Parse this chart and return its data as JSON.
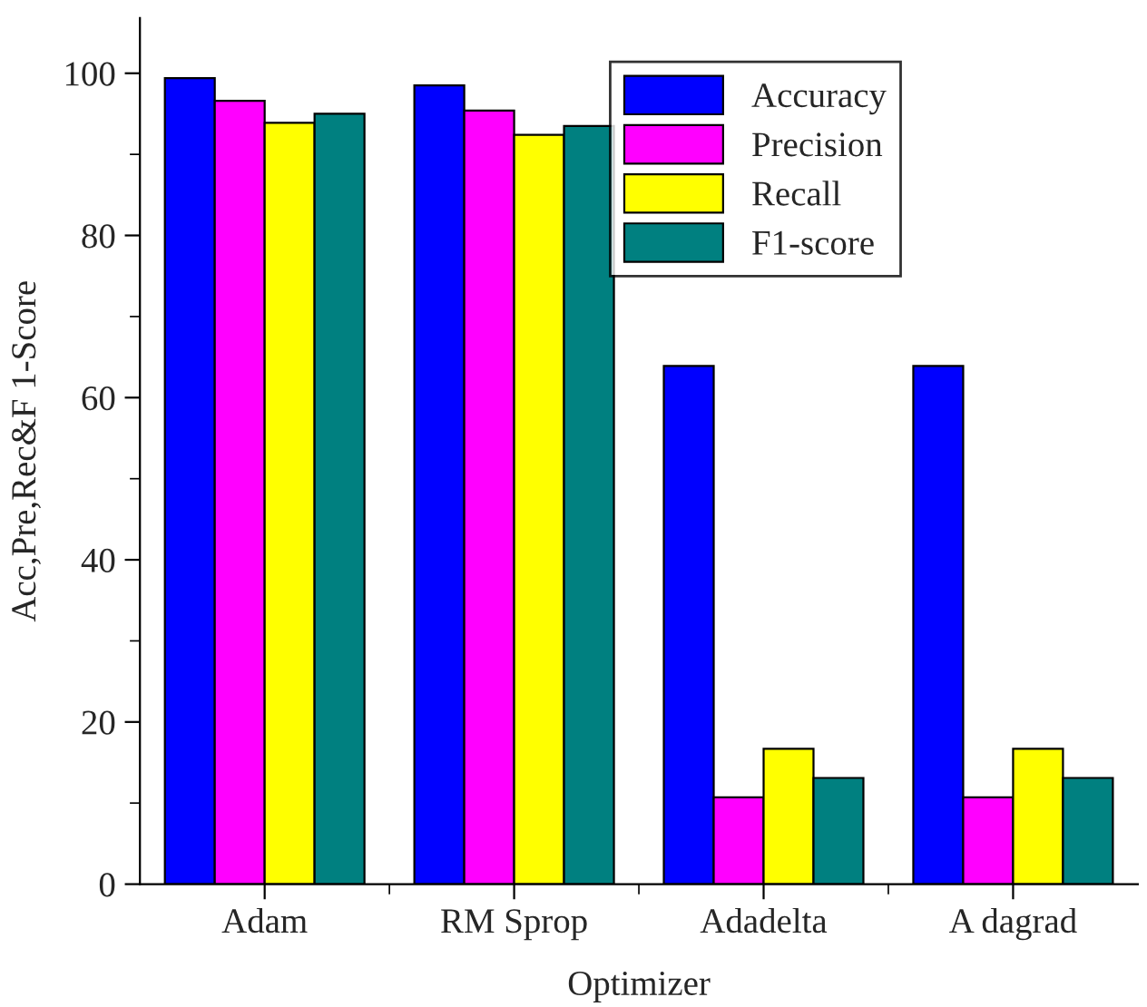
{
  "chart_data": {
    "type": "bar",
    "xlabel": "Optimizer",
    "ylabel": "Acc,Pre,Rec&F 1-Score",
    "categories": [
      "Adam",
      "RM Sprop",
      "Adadelta",
      "A dagrad"
    ],
    "series": [
      {
        "name": "Accuracy",
        "color": "#0000ff",
        "values": [
          99.4,
          98.5,
          63.9,
          63.9
        ]
      },
      {
        "name": "Precision",
        "color": "#ff00ff",
        "values": [
          96.6,
          95.4,
          10.7,
          10.7
        ]
      },
      {
        "name": "Recall",
        "color": "#ffff00",
        "values": [
          93.9,
          92.4,
          16.7,
          16.7
        ]
      },
      {
        "name": "F1-score",
        "color": "#008080",
        "values": [
          95.0,
          93.5,
          13.1,
          13.1
        ]
      }
    ],
    "ylim": [
      0,
      106.8
    ],
    "yticks": [
      0,
      20,
      40,
      60,
      80,
      100
    ],
    "grid": false,
    "legend": "top right"
  }
}
